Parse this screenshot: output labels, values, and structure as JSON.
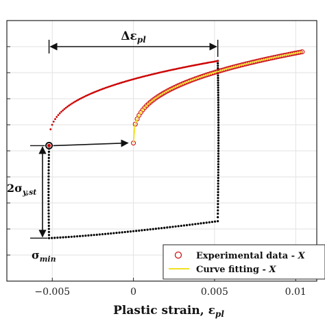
{
  "chart_data": {
    "type": "scatter",
    "xlabel": "Plastic strain, ε",
    "xlabel_sub": "pl",
    "xlim": [
      -0.0078,
      0.0113
    ],
    "x_ticks": [
      -0.005,
      0,
      0.005,
      0.01
    ],
    "x_tick_labels": [
      "−0.005",
      "0",
      "0.005",
      "0.01"
    ],
    "ylim": [
      0,
      10
    ],
    "y_tick_count": 10,
    "grid": true,
    "legend_position": "bottom-right",
    "colors": {
      "loading_branch": "#cc0000",
      "unloading_branch": "#000000",
      "experimental_marker": "#cc1111",
      "fit_line": "#f0e020"
    },
    "series": [
      {
        "name": "Experimental data - X",
        "role": "shifted-experimental",
        "x_range": [
          0,
          0.0104
        ],
        "y_start": 5.3,
        "y_end": 8.8
      },
      {
        "name": "Curve fitting - X",
        "role": "fit",
        "x_range": [
          0,
          0.0104
        ],
        "y_start": 5.3,
        "y_end": 8.8
      },
      {
        "name": "",
        "role": "loading",
        "x_range": [
          -0.0052,
          0.0052
        ],
        "y_start": 5.2,
        "y_end": 8.45
      },
      {
        "name": "",
        "role": "unloading",
        "x_range": [
          -0.0052,
          0.0052
        ],
        "y_start": 1.65,
        "y_end": 8.45
      }
    ],
    "annotations": {
      "delta": {
        "main": "Δε",
        "sub": "pl"
      },
      "two_sigma": {
        "main": "2σ",
        "sub": "y,st"
      },
      "sigma_min": {
        "main": "σ",
        "sub": "min"
      }
    },
    "legend": [
      {
        "label": "Experimental data - ",
        "tail": "X",
        "marker": "circle"
      },
      {
        "label": "Curve fitting - ",
        "tail": "X",
        "marker": "line"
      }
    ]
  }
}
